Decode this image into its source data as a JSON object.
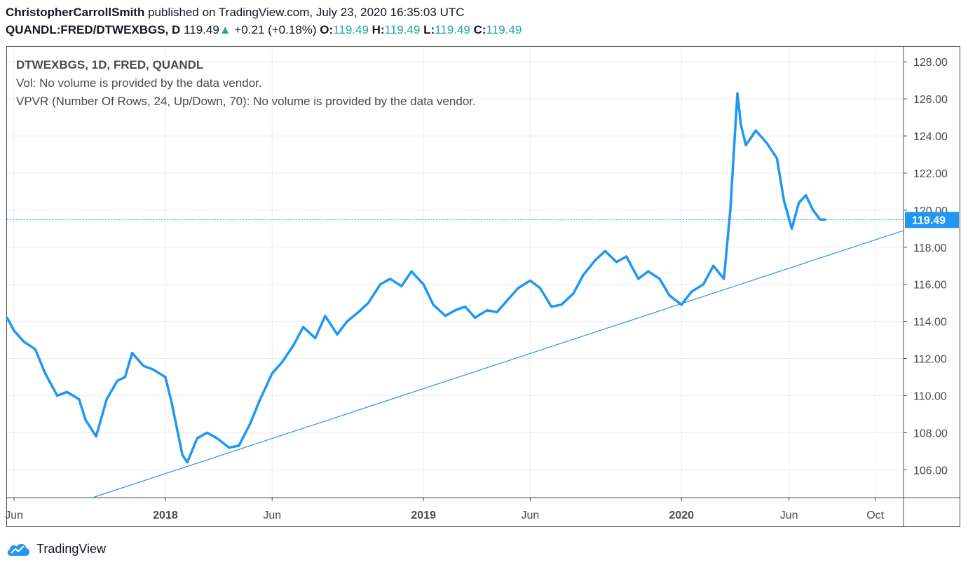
{
  "header": {
    "author": "ChristopherCarrollSmith",
    "published": "published on TradingView.com, July 23, 2020 16:35:03 UTC",
    "symbol": "QUANDL:FRED/DTWEXBGS, D",
    "last": "119.49",
    "change_arrow": "▲",
    "change": "+0.21 (+0.18%)",
    "o_label": "O:",
    "o_value": "119.49",
    "h_label": "H:",
    "h_value": "119.49",
    "l_label": "L:",
    "l_value": "119.49",
    "c_label": "C:",
    "c_value": "119.49"
  },
  "legend": {
    "title": "DTWEXBGS, 1D, FRED, QUANDL",
    "vol": "Vol: No volume is provided by the data vendor.",
    "vpvr": "VPVR (Number Of Rows, 24, Up/Down, 70): No volume is provided by the data vendor."
  },
  "footer": {
    "brand": "TradingView",
    "logo_icon": "tradingview-cloud-icon"
  },
  "colors": {
    "series": "#2196f3",
    "trendline": "#2196f3",
    "price_label_bg": "#2196f3",
    "grid": "#e9edf2",
    "up": "#26a69a"
  },
  "chart_data": {
    "type": "line",
    "grid": true,
    "y_axis_side": "right",
    "ylim": [
      104.5,
      128.8
    ],
    "y_ticks": [
      "106.00",
      "108.00",
      "110.00",
      "112.00",
      "114.00",
      "116.00",
      "118.00",
      "120.00",
      "122.00",
      "124.00",
      "126.00",
      "128.00"
    ],
    "x_range": [
      "2017-05-22",
      "2020-11-10"
    ],
    "x_ticks": [
      {
        "date": "2017-06-01",
        "label": "Jun",
        "bold": false
      },
      {
        "date": "2018-01-01",
        "label": "2018",
        "bold": true
      },
      {
        "date": "2018-06-01",
        "label": "Jun",
        "bold": false
      },
      {
        "date": "2019-01-01",
        "label": "2019",
        "bold": true
      },
      {
        "date": "2019-06-01",
        "label": "Jun",
        "bold": false
      },
      {
        "date": "2020-01-01",
        "label": "2020",
        "bold": true
      },
      {
        "date": "2020-06-01",
        "label": "Jun",
        "bold": false
      },
      {
        "date": "2020-10-01",
        "label": "Oct",
        "bold": false
      }
    ],
    "last_price_label": "119.49",
    "last_price": 119.49,
    "series": [
      {
        "values": [
          [
            "2017-05-22",
            114.2
          ],
          [
            "2017-06-01",
            113.5
          ],
          [
            "2017-06-15",
            112.9
          ],
          [
            "2017-07-01",
            112.5
          ],
          [
            "2017-07-15",
            111.2
          ],
          [
            "2017-08-01",
            110.0
          ],
          [
            "2017-08-15",
            110.2
          ],
          [
            "2017-09-01",
            109.8
          ],
          [
            "2017-09-10",
            108.7
          ],
          [
            "2017-09-25",
            107.8
          ],
          [
            "2017-10-10",
            109.8
          ],
          [
            "2017-10-25",
            110.8
          ],
          [
            "2017-11-05",
            111.0
          ],
          [
            "2017-11-15",
            112.3
          ],
          [
            "2017-12-01",
            111.6
          ],
          [
            "2017-12-15",
            111.4
          ],
          [
            "2018-01-01",
            111.0
          ],
          [
            "2018-01-10",
            109.6
          ],
          [
            "2018-01-25",
            106.8
          ],
          [
            "2018-02-01",
            106.4
          ],
          [
            "2018-02-15",
            107.7
          ],
          [
            "2018-03-01",
            108.0
          ],
          [
            "2018-03-15",
            107.7
          ],
          [
            "2018-04-01",
            107.2
          ],
          [
            "2018-04-15",
            107.3
          ],
          [
            "2018-05-01",
            108.5
          ],
          [
            "2018-05-15",
            109.8
          ],
          [
            "2018-06-01",
            111.2
          ],
          [
            "2018-06-15",
            111.8
          ],
          [
            "2018-07-01",
            112.7
          ],
          [
            "2018-07-15",
            113.7
          ],
          [
            "2018-08-01",
            113.1
          ],
          [
            "2018-08-15",
            114.3
          ],
          [
            "2018-09-01",
            113.3
          ],
          [
            "2018-09-15",
            114.0
          ],
          [
            "2018-10-01",
            114.5
          ],
          [
            "2018-10-15",
            115.0
          ],
          [
            "2018-11-01",
            116.0
          ],
          [
            "2018-11-15",
            116.3
          ],
          [
            "2018-12-01",
            115.9
          ],
          [
            "2018-12-15",
            116.7
          ],
          [
            "2019-01-01",
            116.0
          ],
          [
            "2019-01-15",
            114.9
          ],
          [
            "2019-02-01",
            114.3
          ],
          [
            "2019-02-15",
            114.6
          ],
          [
            "2019-03-01",
            114.8
          ],
          [
            "2019-03-15",
            114.2
          ],
          [
            "2019-04-01",
            114.6
          ],
          [
            "2019-04-15",
            114.5
          ],
          [
            "2019-05-01",
            115.2
          ],
          [
            "2019-05-15",
            115.8
          ],
          [
            "2019-06-01",
            116.2
          ],
          [
            "2019-06-15",
            115.8
          ],
          [
            "2019-07-01",
            114.8
          ],
          [
            "2019-07-15",
            114.9
          ],
          [
            "2019-08-01",
            115.5
          ],
          [
            "2019-08-15",
            116.5
          ],
          [
            "2019-09-01",
            117.3
          ],
          [
            "2019-09-15",
            117.8
          ],
          [
            "2019-10-01",
            117.2
          ],
          [
            "2019-10-15",
            117.5
          ],
          [
            "2019-11-01",
            116.3
          ],
          [
            "2019-11-15",
            116.7
          ],
          [
            "2019-12-01",
            116.3
          ],
          [
            "2019-12-15",
            115.4
          ],
          [
            "2020-01-01",
            114.9
          ],
          [
            "2020-01-15",
            115.6
          ],
          [
            "2020-02-01",
            116.0
          ],
          [
            "2020-02-15",
            117.0
          ],
          [
            "2020-03-01",
            116.3
          ],
          [
            "2020-03-10",
            120.0
          ],
          [
            "2020-03-20",
            126.3
          ],
          [
            "2020-03-25",
            124.6
          ],
          [
            "2020-04-01",
            123.5
          ],
          [
            "2020-04-15",
            124.3
          ],
          [
            "2020-05-01",
            123.6
          ],
          [
            "2020-05-15",
            122.8
          ],
          [
            "2020-05-25",
            120.5
          ],
          [
            "2020-06-05",
            119.0
          ],
          [
            "2020-06-15",
            120.4
          ],
          [
            "2020-06-25",
            120.8
          ],
          [
            "2020-07-05",
            120.0
          ],
          [
            "2020-07-15",
            119.5
          ],
          [
            "2020-07-22",
            119.49
          ]
        ]
      }
    ],
    "trendline": [
      [
        "2017-09-20",
        104.5
      ],
      [
        "2020-11-10",
        118.9
      ]
    ]
  }
}
